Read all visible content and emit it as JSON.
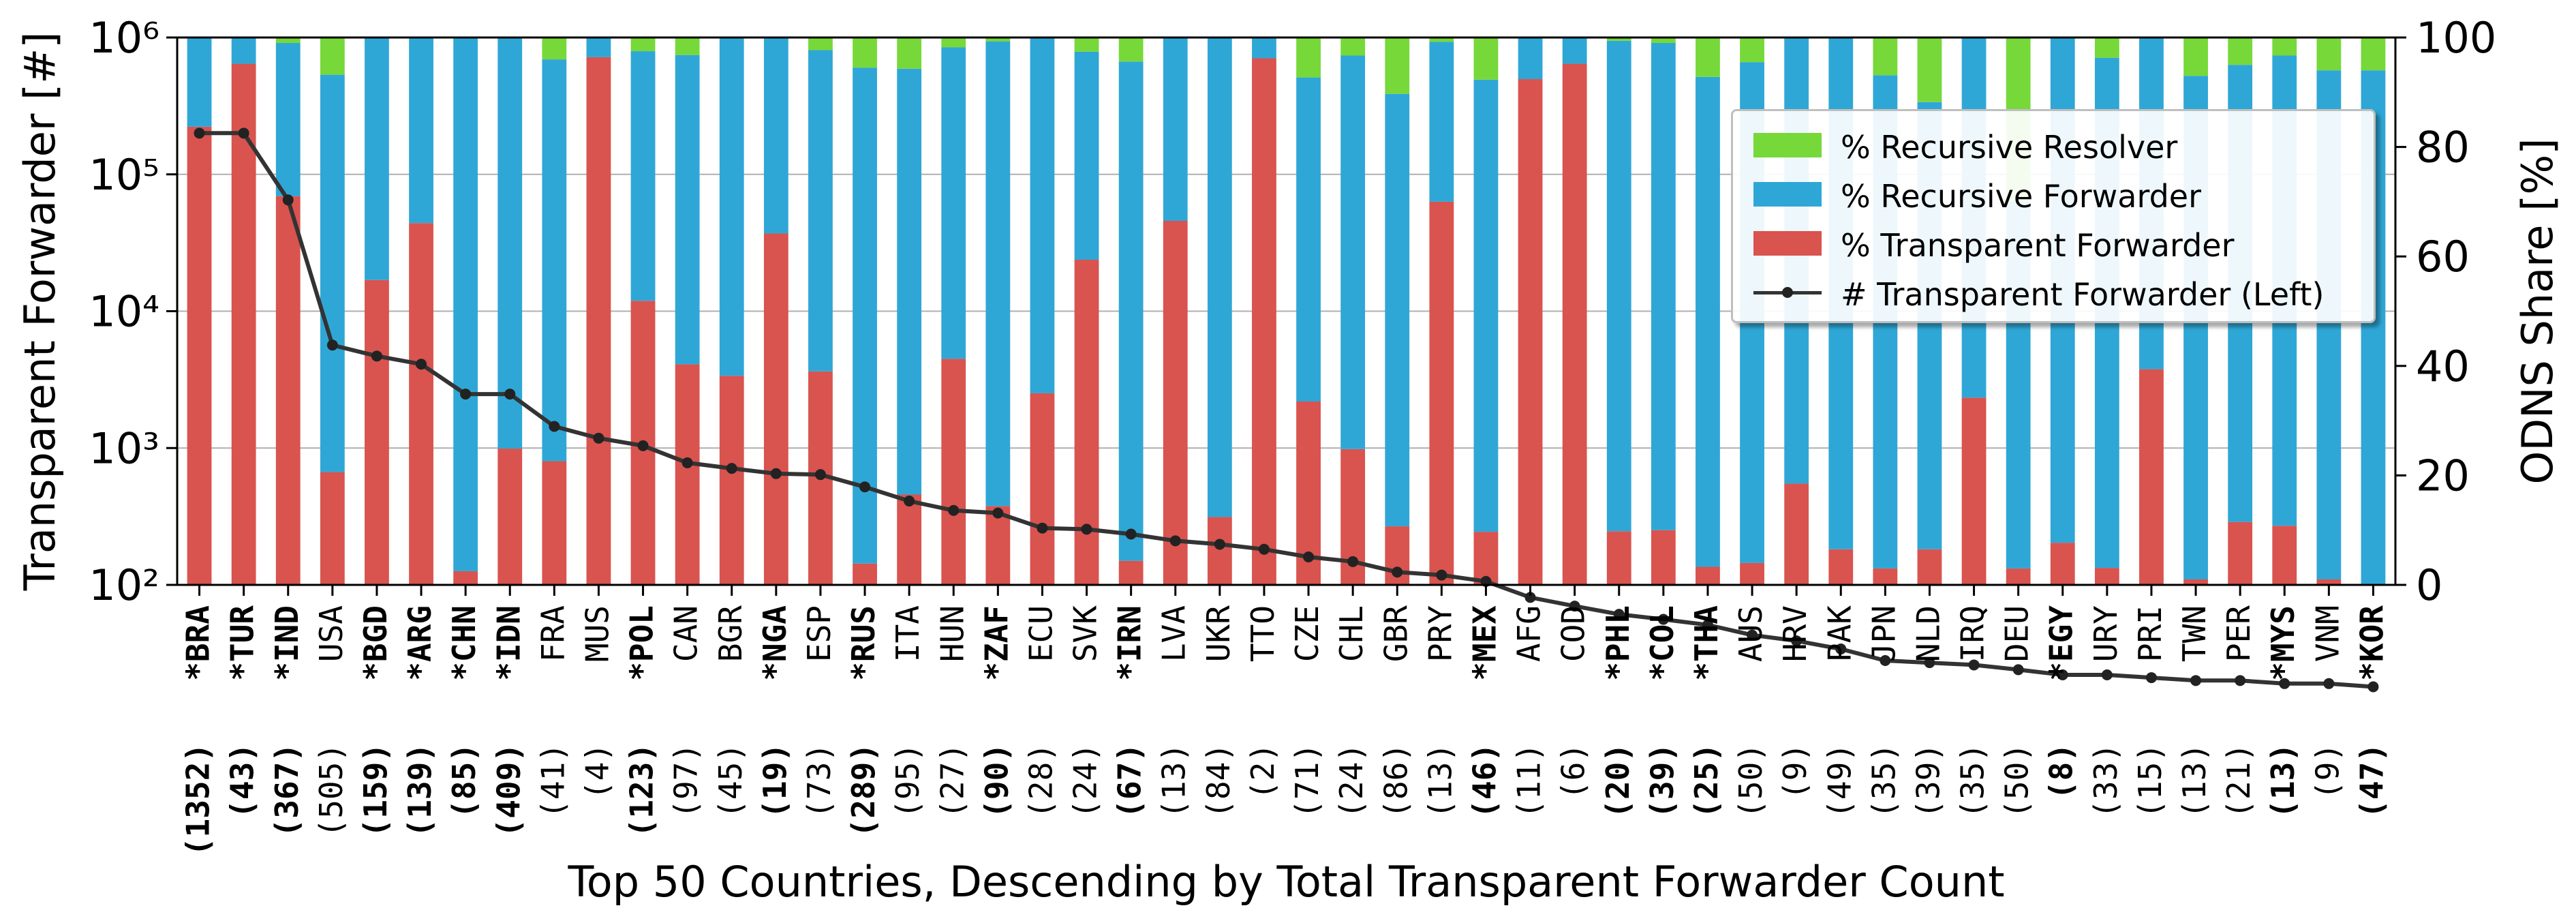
{
  "chart_data": {
    "type": "bar",
    "xlabel": "Top 50 Countries, Descending by Total Transparent Forwarder Count",
    "ylabel_left": "Transparent Forwarder [#]",
    "ylabel_right": "ODNS Share [%]",
    "left_axis": {
      "scale": "log",
      "ylim": [
        100,
        1000000
      ],
      "ticks": [
        100,
        1000,
        10000,
        100000,
        1000000
      ],
      "tick_labels": [
        "10²",
        "10³",
        "10⁴",
        "10⁵",
        "10⁶"
      ]
    },
    "right_axis": {
      "ylim": [
        0,
        100
      ],
      "ticks": [
        0,
        20,
        40,
        60,
        80,
        100
      ],
      "tick_labels": [
        "0",
        "20",
        "40",
        "60",
        "80",
        "100"
      ]
    },
    "grid": "horizontal",
    "legend_position": "upper right",
    "legend": [
      {
        "label": "% Recursive Resolver",
        "kind": "patch",
        "color": "#77d83a"
      },
      {
        "label": "% Recursive Forwarder",
        "kind": "patch",
        "color": "#2fa7d6"
      },
      {
        "label": "% Transparent Forwarder",
        "kind": "patch",
        "color": "#d9534f"
      },
      {
        "label": "# Transparent Forwarder (Left)",
        "kind": "line",
        "color": "#333333"
      }
    ],
    "categories": [
      "*BRA",
      "*TUR",
      "*IND",
      "USA",
      "*BGD",
      "*ARG",
      "*CHN",
      "*IDN",
      "FRA",
      "MUS",
      "*POL",
      "CAN",
      "BGR",
      "*NGA",
      "ESP",
      "*RUS",
      "ITA",
      "HUN",
      "*ZAF",
      "ECU",
      "SVK",
      "*IRN",
      "LVA",
      "UKR",
      "TTO",
      "CZE",
      "CHL",
      "GBR",
      "PRY",
      "*MEX",
      "AFG",
      "COD",
      "*PHL",
      "*COL",
      "*THA",
      "AUS",
      "HRV",
      "PAK",
      "JPN",
      "NLD",
      "IRQ",
      "DEU",
      "*EGY",
      "URY",
      "PRI",
      "TWN",
      "PER",
      "*MYS",
      "VNM",
      "*KOR"
    ],
    "counts_label": [
      "(1352)",
      "(43)",
      "(367)",
      "(505)",
      "(159)",
      "(139)",
      "(85)",
      "(409)",
      "(41)",
      "(4)",
      "(123)",
      "(97)",
      "(45)",
      "(19)",
      "(73)",
      "(289)",
      "(95)",
      "(27)",
      "(90)",
      "(28)",
      "(24)",
      "(67)",
      "(13)",
      "(84)",
      "(2)",
      "(71)",
      "(24)",
      "(86)",
      "(13)",
      "(46)",
      "(11)",
      "(6)",
      "(20)",
      "(39)",
      "(25)",
      "(50)",
      "(9)",
      "(49)",
      "(35)",
      "(39)",
      "(35)",
      "(50)",
      "(8)",
      "(33)",
      "(15)",
      "(13)",
      "(21)",
      "(13)",
      "(9)",
      "(47)"
    ],
    "bold": [
      true,
      true,
      true,
      false,
      true,
      true,
      true,
      true,
      false,
      false,
      true,
      false,
      false,
      true,
      false,
      true,
      false,
      false,
      true,
      false,
      false,
      true,
      false,
      false,
      false,
      false,
      false,
      false,
      false,
      true,
      false,
      false,
      true,
      true,
      true,
      false,
      false,
      false,
      false,
      false,
      false,
      false,
      true,
      false,
      false,
      false,
      false,
      true,
      false,
      true
    ],
    "series": [
      {
        "name": "% Transparent Forwarder",
        "values": [
          83.7,
          95.2,
          71.0,
          20.6,
          55.7,
          66.1,
          2.5,
          24.9,
          22.6,
          96.4,
          51.9,
          40.3,
          38.2,
          64.2,
          39.0,
          3.9,
          16.5,
          41.3,
          14.4,
          35.0,
          59.4,
          4.4,
          66.5,
          12.4,
          96.2,
          33.5,
          24.8,
          10.7,
          70.0,
          9.7,
          92.4,
          95.2,
          9.8,
          10.0,
          3.3,
          4.0,
          18.5,
          6.5,
          3.0,
          6.5,
          34.2,
          3.0,
          7.7,
          3.1,
          39.4,
          1.0,
          11.5,
          10.8,
          1.0,
          0.0
        ]
      },
      {
        "name": "% Recursive Forwarder",
        "values": [
          16.3,
          4.8,
          28.0,
          72.6,
          44.3,
          33.9,
          97.5,
          75.1,
          73.4,
          3.6,
          45.6,
          56.5,
          61.8,
          35.8,
          58.7,
          90.6,
          77.8,
          56.9,
          84.9,
          65.0,
          38.0,
          91.2,
          33.5,
          87.6,
          3.8,
          59.2,
          71.9,
          79.0,
          29.2,
          82.6,
          7.6,
          4.8,
          89.6,
          89.0,
          89.5,
          91.5,
          81.5,
          93.5,
          90.1,
          81.7,
          65.8,
          67.0,
          92.3,
          93.2,
          60.6,
          92.0,
          83.5,
          85.9,
          93.0,
          94.0
        ]
      },
      {
        "name": "% Recursive Resolver",
        "values": [
          0.0,
          0.0,
          1.0,
          6.8,
          0.0,
          0.0,
          0.0,
          0.0,
          4.0,
          0.0,
          2.5,
          3.2,
          0.0,
          0.0,
          2.3,
          5.5,
          5.7,
          1.8,
          0.7,
          0.0,
          2.6,
          4.4,
          0.0,
          0.0,
          0.0,
          7.3,
          3.3,
          10.3,
          0.8,
          7.7,
          0.0,
          0.0,
          0.6,
          1.0,
          7.2,
          4.5,
          0.0,
          0.0,
          6.9,
          11.8,
          0.0,
          30.0,
          0.0,
          3.7,
          0.0,
          7.0,
          5.0,
          3.3,
          6.0,
          6.0
        ]
      },
      {
        "name": "# Transparent Forwarder (Left)",
        "values": [
          200000,
          200000,
          65000,
          5650,
          4700,
          4100,
          2480,
          2480,
          1440,
          1180,
          1040,
          780,
          710,
          650,
          640,
          520,
          410,
          350,
          335,
          260,
          255,
          235,
          210,
          198,
          182,
          160,
          148,
          124,
          118,
          106,
          81,
          70,
          61,
          56,
          51,
          43,
          39,
          34,
          28,
          27,
          26,
          24,
          22,
          22,
          21,
          20,
          20,
          19,
          19,
          18
        ]
      }
    ]
  }
}
